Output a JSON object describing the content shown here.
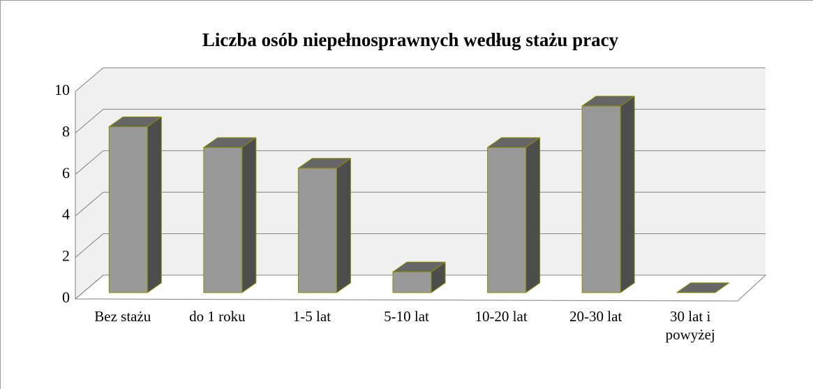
{
  "chart_data": {
    "type": "bar3d",
    "title": "Liczba osób niepełnosprawnych według stażu pracy",
    "categories": [
      "Bez stażu",
      "do 1 roku",
      "1-5 lat",
      "5-10 lat",
      "10-20 lat",
      "20-30 lat",
      "30 lat i powyżej"
    ],
    "values": [
      8,
      7,
      6,
      1,
      7,
      9,
      0
    ],
    "color": "#999999",
    "ylim": [
      0,
      10
    ],
    "yticks": [
      0,
      2,
      4,
      6,
      8,
      10
    ],
    "grid": true
  }
}
